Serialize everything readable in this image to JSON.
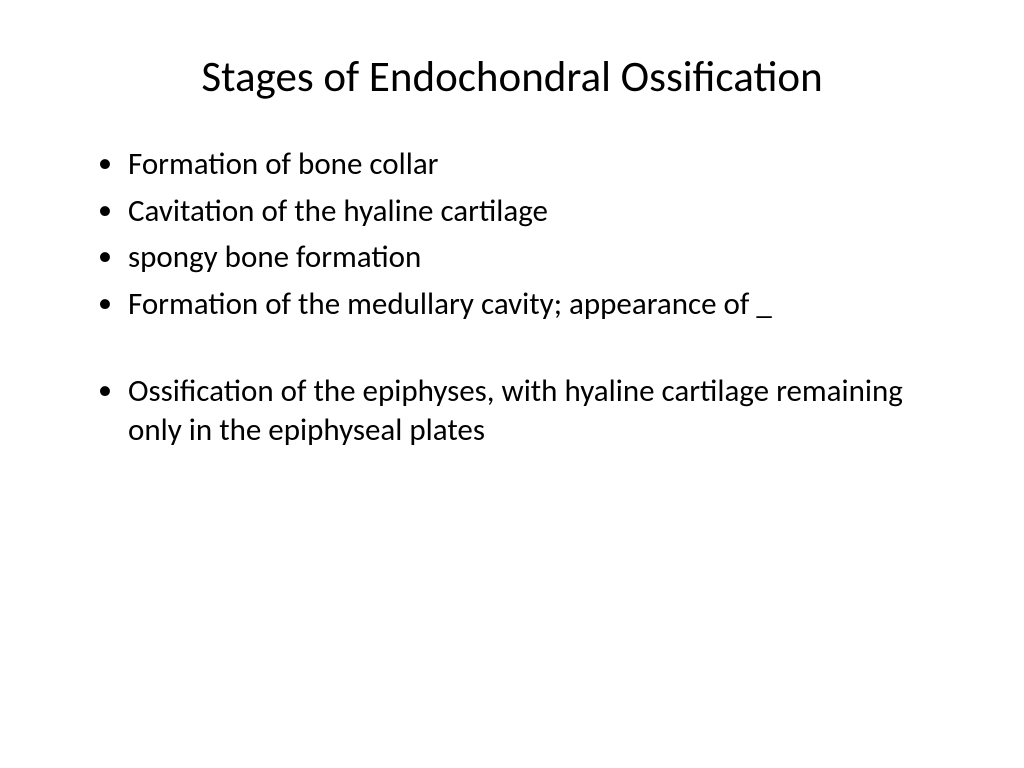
{
  "slide": {
    "title": "Stages of Endochondral Ossification",
    "bullets": [
      "Formation of bone collar",
      "Cavitation of the hyaline cartilage",
      "spongy bone formation",
      "Formation of the medullary cavity; appearance of _",
      "Ossification of the epiphyses, with hyaline cartilage remaining only in the epiphyseal plates"
    ],
    "background_color": "#ffffff",
    "text_color": "#000000",
    "title_fontsize": 43,
    "body_fontsize": 31,
    "font_family": "Calibri"
  }
}
